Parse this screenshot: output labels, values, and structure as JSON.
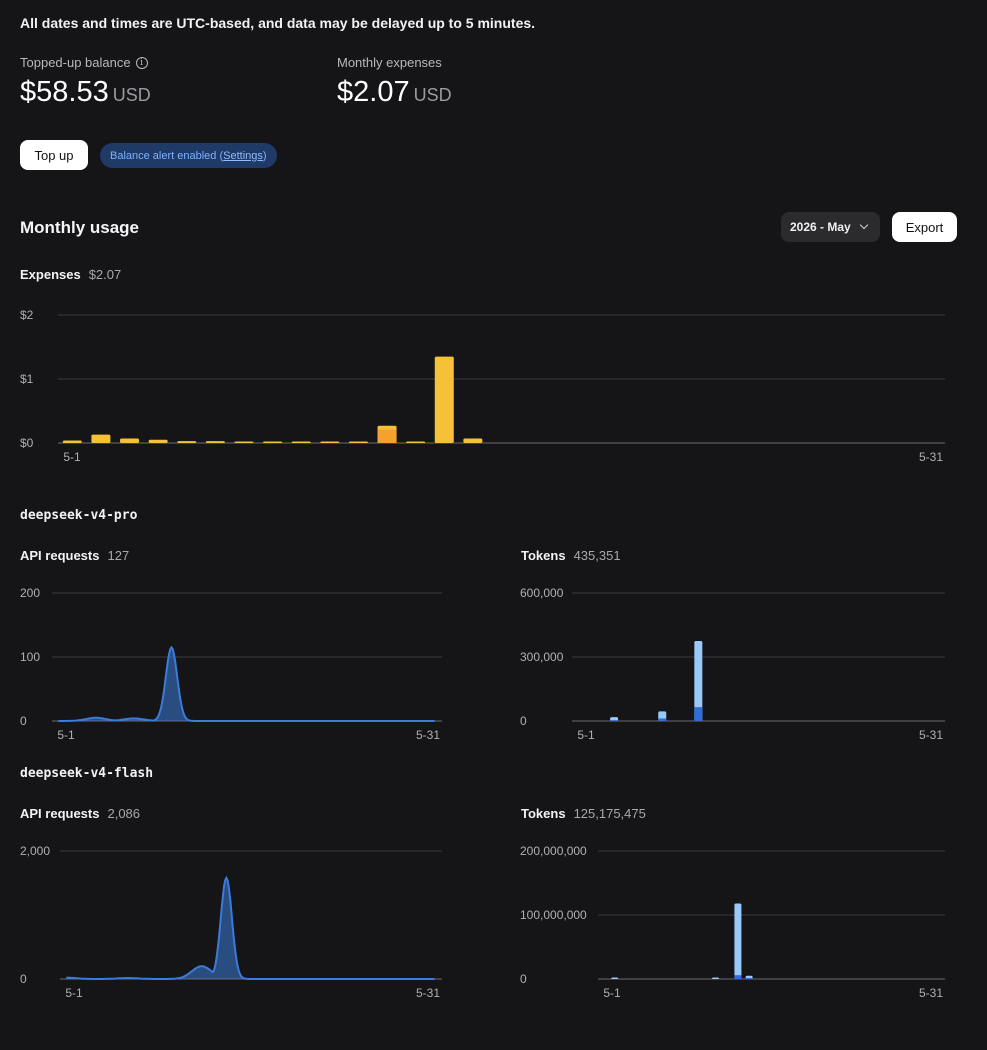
{
  "notice": "All dates and times are UTC-based, and data may be delayed up to 5 minutes.",
  "balance": {
    "label": "Topped-up balance",
    "amount": "$58.53",
    "unit": "USD"
  },
  "expenses_summary": {
    "label": "Monthly expenses",
    "amount": "$2.07",
    "unit": "USD"
  },
  "actions": {
    "top_up": "Top up",
    "alert_text": "Balance alert enabled (",
    "alert_link": "Settings",
    "alert_close": ")"
  },
  "monthly": {
    "title": "Monthly usage",
    "period": "2026 - May",
    "export": "Export"
  },
  "colors": {
    "expense": "#f7c137",
    "expense_dark": "#f4a22d",
    "line": "#3b7bd9",
    "token_light": "#9bc9f7",
    "token_dark": "#2c6fd9"
  },
  "chart_data": [
    {
      "id": "expenses",
      "type": "bar",
      "title": "Expenses",
      "total": "$2.07",
      "x_start": "5-1",
      "x_end": "5-31",
      "ylim": [
        0,
        2
      ],
      "y_ticks": [
        "$0",
        "$1",
        "$2"
      ],
      "y_tick_values": [
        0,
        1,
        2
      ],
      "values": [
        0.04,
        0.13,
        0.07,
        0.05,
        0.03,
        0.03,
        0.005,
        0.01,
        0.01,
        0.005,
        0.015,
        0.27,
        0.01,
        1.35,
        0.07
      ],
      "values_dark": [
        0,
        0,
        0,
        0,
        0,
        0,
        0,
        0,
        0,
        0,
        0,
        0.21,
        0,
        0,
        0
      ]
    },
    {
      "id": "pro-requests",
      "model": "deepseek-v4-pro",
      "type": "area",
      "title": "API requests",
      "total": "127",
      "x_start": "5-1",
      "x_end": "5-31",
      "ylim": [
        0,
        200
      ],
      "y_ticks": [
        "0",
        "100",
        "200"
      ],
      "y_tick_values": [
        0,
        100,
        200
      ],
      "x": [
        1,
        4,
        7,
        10,
        31
      ],
      "values": [
        0,
        5,
        4,
        115,
        0
      ]
    },
    {
      "id": "pro-tokens",
      "model": "deepseek-v4-pro",
      "type": "bar",
      "title": "Tokens",
      "total": "435,351",
      "x_start": "5-1",
      "x_end": "5-31",
      "ylim": [
        0,
        600000
      ],
      "y_ticks": [
        "0",
        "300,000",
        "600,000"
      ],
      "y_tick_values": [
        0,
        300000,
        600000
      ],
      "x": [
        4,
        8,
        11
      ],
      "values": [
        18000,
        45000,
        375000
      ],
      "values_dark": [
        4000,
        12000,
        65000
      ]
    },
    {
      "id": "flash-requests",
      "model": "deepseek-v4-flash",
      "type": "area",
      "title": "API requests",
      "total": "2,086",
      "x_start": "5-1",
      "x_end": "5-31",
      "ylim": [
        0,
        2000
      ],
      "y_ticks": [
        "0",
        "2,000"
      ],
      "y_tick_values": [
        0,
        2000
      ],
      "x": [
        1,
        6,
        12,
        14,
        31
      ],
      "values": [
        20,
        15,
        200,
        1580,
        0
      ]
    },
    {
      "id": "flash-tokens",
      "model": "deepseek-v4-flash",
      "type": "bar",
      "title": "Tokens",
      "total": "125,175,475",
      "x_start": "5-1",
      "x_end": "5-31",
      "ylim": [
        0,
        200000000
      ],
      "y_ticks": [
        "0",
        "100,000,000",
        "200,000,000"
      ],
      "y_tick_values": [
        0,
        100000000,
        200000000
      ],
      "x": [
        2,
        11,
        13,
        14
      ],
      "values": [
        800000,
        1200000,
        118000000,
        5000000
      ],
      "values_dark": [
        0,
        0,
        6000000,
        1500000
      ]
    }
  ]
}
